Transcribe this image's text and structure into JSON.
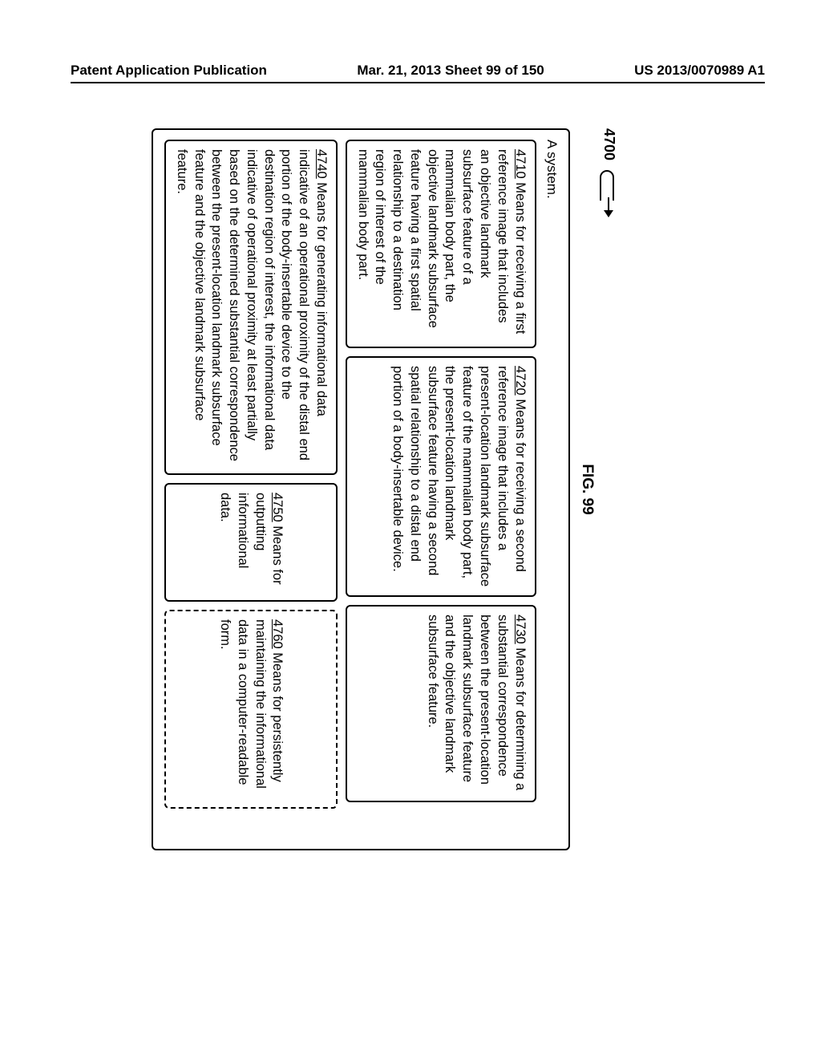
{
  "header": {
    "left": "Patent Application Publication",
    "center": "Mar. 21, 2013  Sheet 99 of 150",
    "right": "US 2013/0070989 A1"
  },
  "figure": {
    "number": "4700",
    "title": "FIG. 99",
    "system_label": "A system.",
    "boxes": {
      "b4710": {
        "ref": "4710",
        "text": "  Means for receiving a first reference image that includes an objective landmark subsurface feature of a mammalian body part, the objective landmark subsurface feature having a first spatial relationship to a destination region of interest of the mammalian body part."
      },
      "b4720": {
        "ref": "4720",
        "text": "  Means for receiving a second reference image that includes a present-location landmark subsurface feature of the mammalian body part, the present-location landmark subsurface feature having a second spatial relationship to a distal end portion of a body-insertable device."
      },
      "b4730": {
        "ref": "4730",
        "text": "  Means for determining a substantial correspondence between the present-location landmark subsurface feature and the objective landmark subsurface feature."
      },
      "b4740": {
        "ref": "4740",
        "text": "  Means for generating informational data indicative of an operational proximity of the distal end portion of the body-insertable device to the destination region of interest, the informational data indicative of operational proximity at least partially based on the determined substantial correspondence between the present-location landmark subsurface feature and the objective landmark subsurface feature."
      },
      "b4750": {
        "ref": "4750",
        "text": "  Means for outputting informational data."
      },
      "b4760": {
        "ref": "4760",
        "text": "  Means for persistently maintaining the informational data in a computer-readable form."
      }
    }
  }
}
